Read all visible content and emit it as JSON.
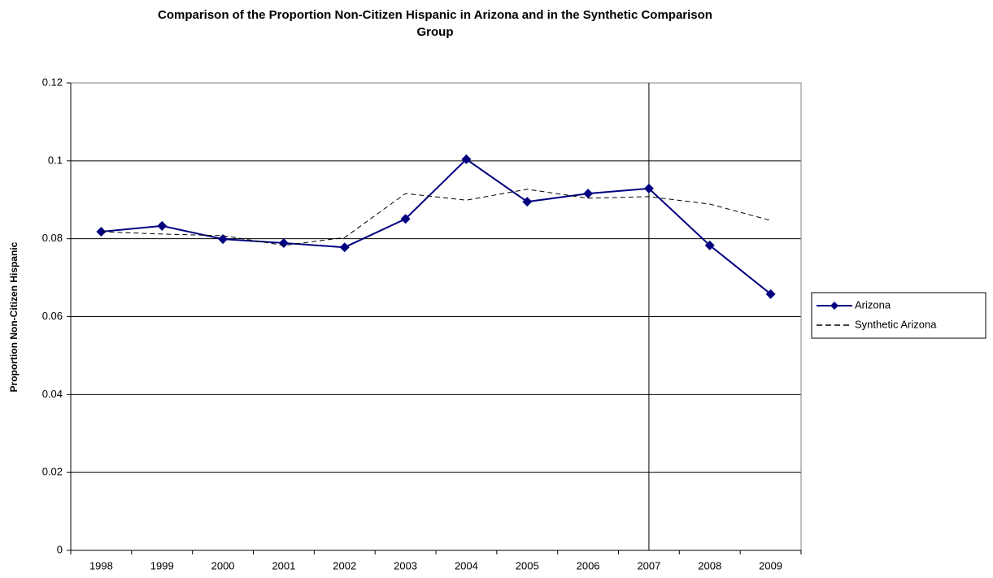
{
  "chart_data": {
    "type": "line",
    "title": "Comparison of the Proportion Non-Citizen Hispanic in Arizona and in the Synthetic Comparison Group",
    "y_label": "Proportion Non-Citizen Hispanic",
    "categories": [
      "1998",
      "1999",
      "2000",
      "2001",
      "2002",
      "2003",
      "2004",
      "2005",
      "2006",
      "2007",
      "2008",
      "2009"
    ],
    "series": [
      {
        "name": "Arizona",
        "color": "#000080",
        "marker": "diamond",
        "dash": "solid",
        "values": [
          0.0818,
          0.0833,
          0.0799,
          0.0789,
          0.0778,
          0.0851,
          0.1004,
          0.0895,
          0.0916,
          0.0929,
          0.0783,
          0.0658
        ]
      },
      {
        "name": "Synthetic Arizona",
        "color": "#000000",
        "marker": "none",
        "dash": "dashed",
        "values": [
          0.0818,
          0.0812,
          0.0808,
          0.0783,
          0.0803,
          0.0916,
          0.0899,
          0.0927,
          0.0904,
          0.0908,
          0.0889,
          0.0847
        ]
      }
    ],
    "ylim": [
      0,
      0.12
    ],
    "yticks": [
      0,
      0.02,
      0.04,
      0.06,
      0.08,
      0.1,
      0.12
    ],
    "grid": true,
    "legend": "right",
    "vline": "2007"
  }
}
